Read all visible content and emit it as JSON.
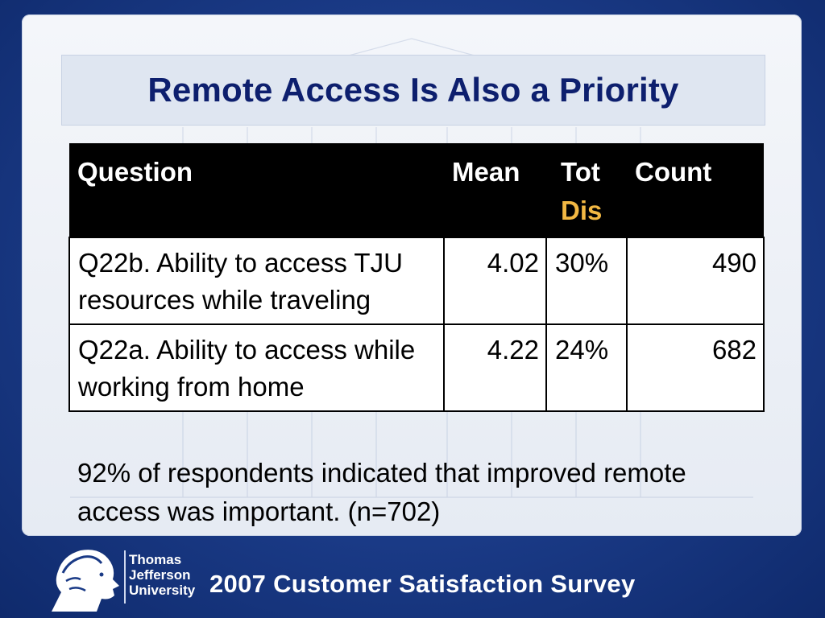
{
  "slide": {
    "title": "Remote Access Is Also a Priority"
  },
  "table": {
    "headers": {
      "question": "Question",
      "mean": "Mean",
      "tot_line1": "Tot",
      "tot_line2": "Dis",
      "count": "Count"
    },
    "rows": [
      {
        "question": "Q22b. Ability to access TJU resources while traveling",
        "mean": "4.02",
        "tot_dis": "30%",
        "count": "490"
      },
      {
        "question": "Q22a. Ability to access while working from home",
        "mean": "4.22",
        "tot_dis": "24%",
        "count": "682"
      }
    ]
  },
  "note": "92% of respondents indicated that improved remote access was important. (n=702)",
  "footer": {
    "university_line1": "Thomas",
    "university_line2": "Jefferson",
    "university_line3": "University",
    "survey_title": "2007 Customer Satisfaction Survey"
  },
  "colors": {
    "title": "#0d1f6e",
    "header_bg": "#000000",
    "header_accent": "#f2b843",
    "background": "#1a3a86"
  },
  "icons": {
    "logo": "jefferson-profile-logo-icon"
  }
}
